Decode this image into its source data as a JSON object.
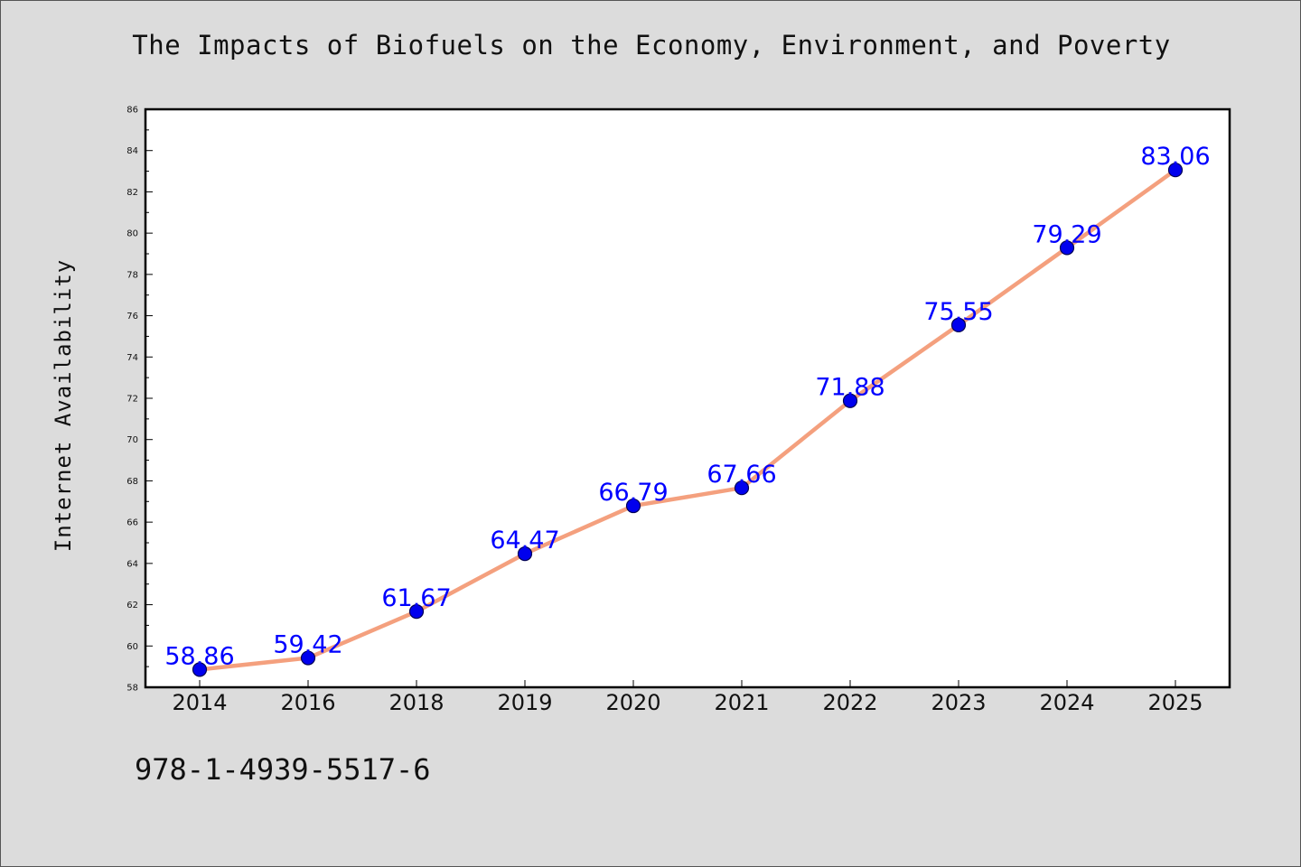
{
  "title": "The Impacts of Biofuels on the Economy, Environment, and Poverty",
  "footer_code": "978-1-4939-5517-6",
  "colors": {
    "background": "#dcdcdc",
    "plot_background": "#ffffff",
    "line": "#f4a07e",
    "marker_fill": "#0000ee",
    "marker_edge": "#000055",
    "label": "#0000ff"
  },
  "chart_data": {
    "type": "line",
    "title": "The Impacts of Biofuels on the Economy, Environment, and Poverty",
    "xlabel": "",
    "ylabel": "Internet Availability",
    "categories": [
      "2014",
      "2016",
      "2018",
      "2019",
      "2020",
      "2021",
      "2022",
      "2023",
      "2024",
      "2025"
    ],
    "series": [
      {
        "values": [
          58.86,
          59.42,
          61.67,
          64.47,
          66.79,
          67.66,
          71.88,
          75.55,
          79.29,
          83.06
        ],
        "labels": [
          "58.86",
          "59.42",
          "61.67",
          "64.47",
          "66.79",
          "67.66",
          "71.88",
          "75.55",
          "79.29",
          "83.06"
        ]
      }
    ],
    "ylim": [
      58,
      86
    ],
    "yticks": [
      58,
      60,
      62,
      64,
      66,
      68,
      70,
      72,
      74,
      76,
      78,
      80,
      82,
      84,
      86
    ],
    "grid": false,
    "legend": "none",
    "marker": "circle"
  }
}
